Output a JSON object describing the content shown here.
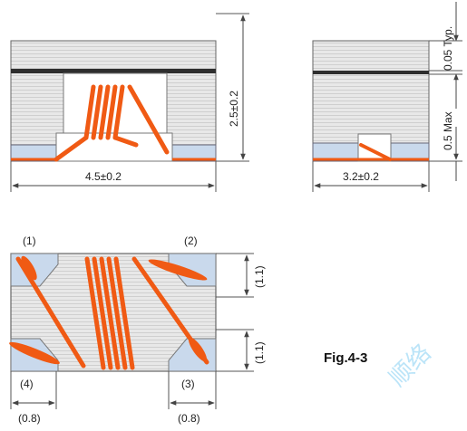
{
  "front_view": {
    "height_label": "2.5±0.2",
    "width_label": "4.5±0.2"
  },
  "side_view": {
    "top_label": "0.05 Typ.",
    "mid_label": "0.5 Max",
    "width_label": "3.2±0.2"
  },
  "bottom_view": {
    "corner_1": "(1)",
    "corner_2": "(2)",
    "corner_3": "(3)",
    "corner_4": "(4)",
    "right_upper_label": "(1.1)",
    "right_lower_label": "(1.1)",
    "left_width_label": "(0.8)",
    "right_width_label": "(0.8)"
  },
  "figure_label": "Fig.4-3",
  "watermark": "顺络",
  "colors": {
    "body_gray": "#e6e6e6",
    "stripe_gray": "#cfcfcf",
    "terminal_blue": "#c9d9ec",
    "coil_orange": "#f05a14",
    "outline": "#555555",
    "top_band": "#2e2e2e"
  }
}
